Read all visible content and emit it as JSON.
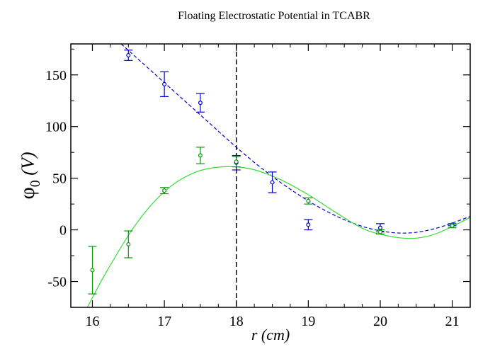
{
  "chart_data": {
    "type": "scatter",
    "title": "Floating Electrostatic Potential in TCABR",
    "xlabel": "r (cm)",
    "ylabel_main": "φ",
    "ylabel_sub": "0",
    "ylabel_unit": " (V)",
    "xlim": [
      15.7,
      21.25
    ],
    "ylim": [
      -75,
      180
    ],
    "xticks": [
      16,
      17,
      18,
      19,
      20,
      21
    ],
    "yticks": [
      -50,
      0,
      50,
      100,
      150
    ],
    "grid": false,
    "vline": {
      "x": 18,
      "style": "dashed",
      "color": "#000000"
    },
    "series": [
      {
        "color": "#0000cc",
        "line_style": "dashed",
        "points": [
          {
            "x": 16.5,
            "y": 169,
            "err": 5
          },
          {
            "x": 17.0,
            "y": 141,
            "err": 12
          },
          {
            "x": 17.5,
            "y": 123,
            "err": 9
          },
          {
            "x": 18.0,
            "y": 65,
            "err": 7
          },
          {
            "x": 18.5,
            "y": 46,
            "err": 10
          },
          {
            "x": 19.0,
            "y": 5,
            "err": 5
          },
          {
            "x": 20.0,
            "y": 2,
            "err": 4
          },
          {
            "x": 21.0,
            "y": 5,
            "err": 1
          }
        ],
        "fit": [
          [
            16.4,
            180
          ],
          [
            16.8,
            155
          ],
          [
            17.2,
            130
          ],
          [
            17.6,
            105
          ],
          [
            18.0,
            80
          ],
          [
            18.4,
            57
          ],
          [
            18.8,
            37
          ],
          [
            19.2,
            20
          ],
          [
            19.6,
            7
          ],
          [
            20.0,
            -1
          ],
          [
            20.4,
            -3
          ],
          [
            20.8,
            2
          ],
          [
            21.25,
            13
          ]
        ]
      },
      {
        "color": "#009900",
        "fit_color": "#33dd33",
        "line_style": "solid",
        "points": [
          {
            "x": 16.0,
            "y": -39,
            "err": 23
          },
          {
            "x": 16.5,
            "y": -14,
            "err": 13
          },
          {
            "x": 17.0,
            "y": 38,
            "err": 3
          },
          {
            "x": 17.5,
            "y": 72,
            "err": 8
          },
          {
            "x": 18.0,
            "y": 66,
            "err": 5
          },
          {
            "x": 19.0,
            "y": 28,
            "err": 3
          },
          {
            "x": 20.0,
            "y": -2,
            "err": 2
          },
          {
            "x": 21.0,
            "y": 4,
            "err": 2
          }
        ],
        "fit": [
          [
            15.93,
            -75
          ],
          [
            16.2,
            -40
          ],
          [
            16.6,
            5
          ],
          [
            17.0,
            37
          ],
          [
            17.4,
            55
          ],
          [
            17.8,
            61
          ],
          [
            18.2,
            59
          ],
          [
            18.6,
            49
          ],
          [
            19.0,
            34
          ],
          [
            19.4,
            16
          ],
          [
            19.8,
            0
          ],
          [
            20.2,
            -7
          ],
          [
            20.5,
            -8
          ],
          [
            20.8,
            -3
          ],
          [
            21.25,
            12
          ]
        ]
      }
    ]
  }
}
